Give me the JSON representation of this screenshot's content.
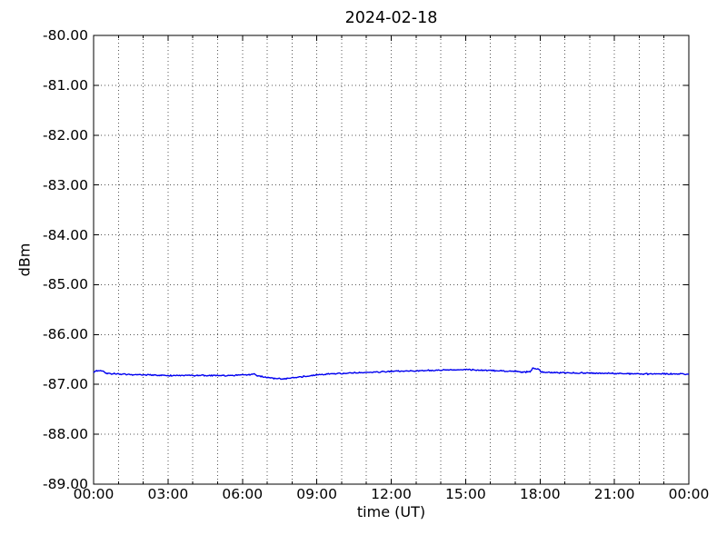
{
  "chart_data": {
    "type": "line",
    "title": "2024-02-18",
    "xlabel": "time (UT)",
    "ylabel": "dBm",
    "xlim_hours": [
      0,
      24
    ],
    "ylim": [
      -89.0,
      -80.0
    ],
    "grid": true,
    "grid_style": "dotted",
    "legend": "none",
    "x_tick_labels": [
      "00:00",
      "03:00",
      "06:00",
      "09:00",
      "12:00",
      "15:00",
      "18:00",
      "21:00",
      "00:00"
    ],
    "x_tick_hours": [
      0,
      3,
      6,
      9,
      12,
      15,
      18,
      21,
      24
    ],
    "x_minor_tick_interval_hours": 1,
    "y_tick_labels": [
      "-80.00",
      "-81.00",
      "-82.00",
      "-83.00",
      "-84.00",
      "-85.00",
      "-86.00",
      "-87.00",
      "-88.00",
      "-89.00"
    ],
    "y_tick_values": [
      -80,
      -81,
      -82,
      -83,
      -84,
      -85,
      -86,
      -87,
      -88,
      -89
    ],
    "colors": {
      "line": "#0000f0",
      "grid": "#555555",
      "axis": "#000000",
      "text": "#000000",
      "background": "#ffffff"
    },
    "series": [
      {
        "x_hours": [
          0,
          0.08,
          0.35,
          0.55,
          1,
          1.5,
          2,
          2.5,
          3,
          3.5,
          4,
          4.5,
          5,
          5.5,
          6,
          6.3,
          6.45,
          6.6,
          7,
          7.3,
          7.7,
          8,
          8.5,
          9,
          9.5,
          10,
          10.5,
          11,
          11.5,
          12,
          12.5,
          13,
          13.5,
          14,
          14.5,
          15,
          15.5,
          16,
          16.5,
          17,
          17.3,
          17.6,
          17.7,
          17.95,
          18.05,
          18.4,
          19,
          20,
          21,
          22,
          23,
          24
        ],
        "values": [
          -86.77,
          -86.73,
          -86.73,
          -86.78,
          -86.79,
          -86.8,
          -86.81,
          -86.81,
          -86.82,
          -86.82,
          -86.82,
          -86.82,
          -86.82,
          -86.82,
          -86.81,
          -86.8,
          -86.78,
          -86.83,
          -86.86,
          -86.88,
          -86.89,
          -86.87,
          -86.84,
          -86.81,
          -86.79,
          -86.78,
          -86.77,
          -86.76,
          -86.75,
          -86.74,
          -86.73,
          -86.73,
          -86.72,
          -86.71,
          -86.71,
          -86.7,
          -86.71,
          -86.72,
          -86.73,
          -86.74,
          -86.75,
          -86.75,
          -86.68,
          -86.69,
          -86.75,
          -86.76,
          -86.77,
          -86.77,
          -86.78,
          -86.79,
          -86.79,
          -86.79
        ]
      }
    ]
  }
}
